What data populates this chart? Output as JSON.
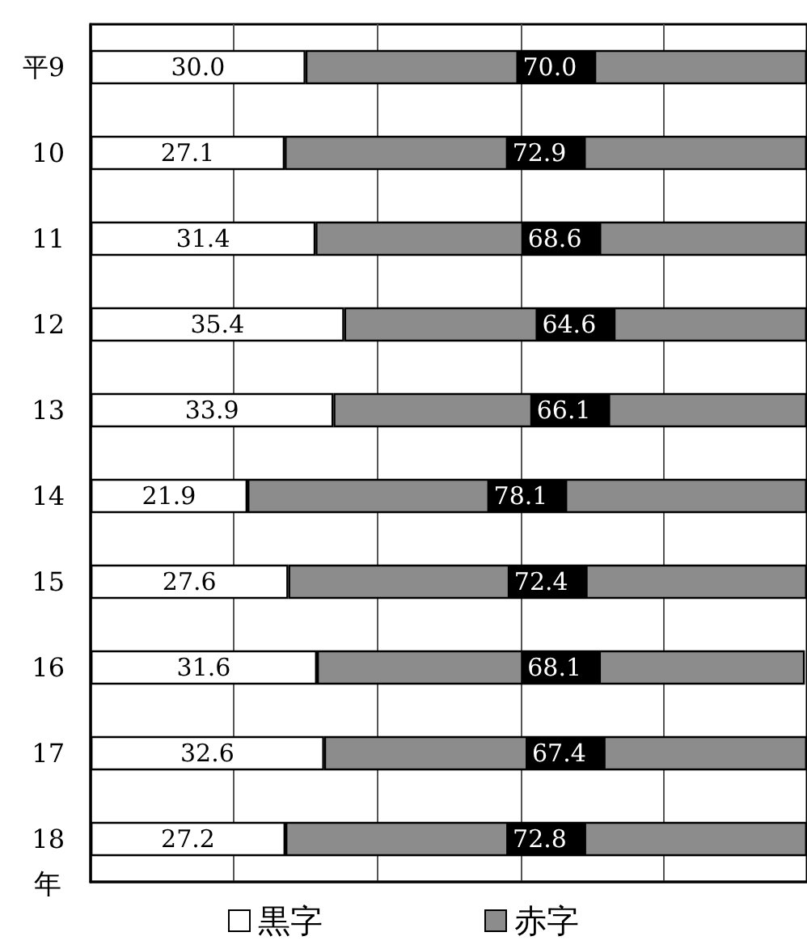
{
  "chart_data": {
    "type": "bar",
    "orientation": "horizontal",
    "stacked": true,
    "categories": [
      "平9",
      "10",
      "11",
      "12",
      "13",
      "14",
      "15",
      "16",
      "17",
      "18"
    ],
    "ylabel": "年",
    "series": [
      {
        "name": "黒字",
        "color": "#ffffff",
        "values": [
          30.0,
          27.1,
          31.4,
          35.4,
          33.9,
          21.9,
          27.6,
          31.6,
          32.6,
          27.2
        ],
        "value_labels": [
          "30.0",
          "27.1",
          "31.4",
          "35.4",
          "33.9",
          "21.9",
          "27.6",
          "31.6",
          "32.6",
          "27.2"
        ]
      },
      {
        "name": "赤字",
        "color": "#8c8c8c",
        "values": [
          70.0,
          72.9,
          68.6,
          64.6,
          66.1,
          78.1,
          72.4,
          68.1,
          67.4,
          72.8
        ],
        "value_labels": [
          "70.0",
          "72.9",
          "68.6",
          "64.6",
          "66.1",
          "78.1",
          "72.4",
          "68.1",
          "67.4",
          "72.8"
        ]
      }
    ],
    "xlim": [
      0,
      100
    ],
    "tick_labels": "y",
    "grid": "x",
    "legend": "bottom"
  }
}
